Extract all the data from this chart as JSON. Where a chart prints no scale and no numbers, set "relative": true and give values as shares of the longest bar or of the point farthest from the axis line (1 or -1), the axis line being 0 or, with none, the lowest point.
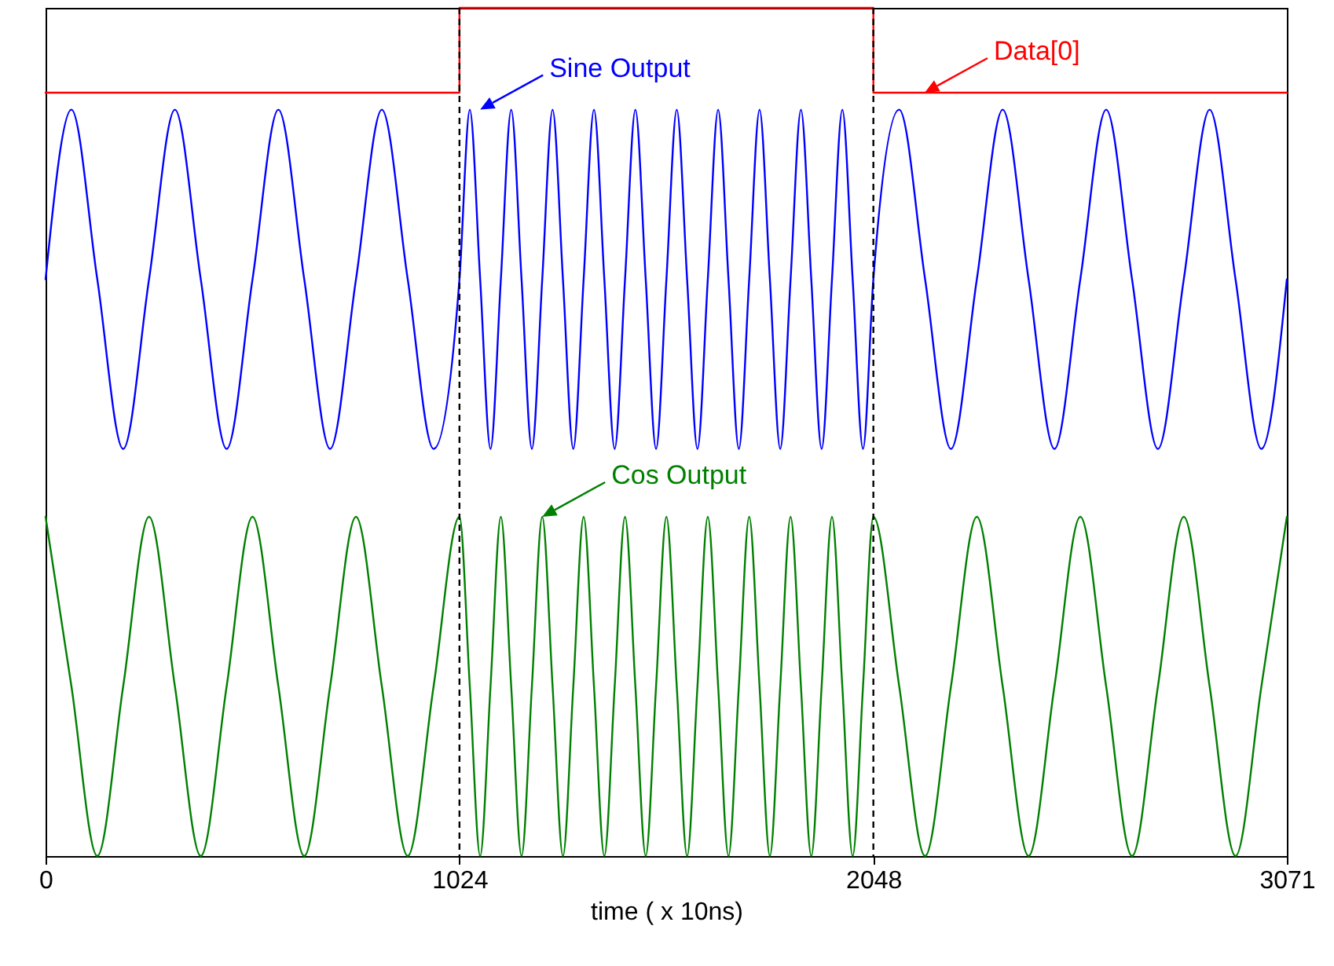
{
  "chart_data": {
    "type": "line",
    "relative": true,
    "xlabel": "time ( x 10ns)",
    "xlim": [
      0,
      3071
    ],
    "xticks": [
      0,
      1024,
      2048,
      3071
    ],
    "grid": false,
    "line_style": "solid",
    "marker": "none",
    "x": [
      0,
      64,
      128,
      192,
      256,
      320,
      384,
      448,
      512,
      576,
      640,
      704,
      768,
      832,
      896,
      960,
      1024,
      1049.6,
      1075.2,
      1100.8,
      1126.4,
      1152,
      1177.6,
      1203.2,
      1228.8,
      1254.4,
      1280,
      1305.6,
      1331.2,
      1356.8,
      1382.4,
      1408,
      1433.6,
      1459.2,
      1484.8,
      1510.4,
      1536,
      1561.6,
      1587.2,
      1612.8,
      1638.4,
      1664,
      1689.6,
      1715.2,
      1740.8,
      1766.4,
      1792,
      1817.6,
      1843.2,
      1868.8,
      1894.4,
      1920,
      1945.6,
      1971.2,
      1996.8,
      2022.4,
      2048,
      2112,
      2176,
      2240,
      2304,
      2368,
      2432,
      2496,
      2560,
      2624,
      2688,
      2752,
      2816,
      2880,
      2944,
      3008,
      3071
    ],
    "series": [
      {
        "color": "#0000ff",
        "values": [
          0.68,
          0.88,
          0.68,
          0.48,
          0.68,
          0.88,
          0.68,
          0.48,
          0.68,
          0.88,
          0.68,
          0.48,
          0.68,
          0.88,
          0.68,
          0.48,
          0.68,
          0.88,
          0.68,
          0.48,
          0.68,
          0.88,
          0.68,
          0.48,
          0.68,
          0.88,
          0.68,
          0.48,
          0.68,
          0.88,
          0.68,
          0.48,
          0.68,
          0.88,
          0.68,
          0.48,
          0.68,
          0.88,
          0.68,
          0.48,
          0.68,
          0.88,
          0.68,
          0.48,
          0.68,
          0.88,
          0.68,
          0.48,
          0.68,
          0.88,
          0.68,
          0.48,
          0.68,
          0.88,
          0.68,
          0.48,
          0.68,
          0.88,
          0.68,
          0.48,
          0.68,
          0.88,
          0.68,
          0.48,
          0.68,
          0.88,
          0.68,
          0.48,
          0.68,
          0.88,
          0.68,
          0.48,
          0.68
        ]
      },
      {
        "color": "#008000",
        "values": [
          0.4,
          0.2,
          0,
          0.2,
          0.4,
          0.2,
          0,
          0.2,
          0.4,
          0.2,
          0,
          0.2,
          0.4,
          0.2,
          0,
          0.2,
          0.4,
          0.2,
          0,
          0.2,
          0.4,
          0.2,
          0,
          0.2,
          0.4,
          0.2,
          0,
          0.2,
          0.4,
          0.2,
          0,
          0.2,
          0.4,
          0.2,
          0,
          0.2,
          0.4,
          0.2,
          0,
          0.2,
          0.4,
          0.2,
          0,
          0.2,
          0.4,
          0.2,
          0,
          0.2,
          0.4,
          0.2,
          0,
          0.2,
          0.4,
          0.2,
          0,
          0.2,
          0.4,
          0.2,
          0,
          0.2,
          0.4,
          0.2,
          0,
          0.2,
          0.4,
          0.2,
          0,
          0.2,
          0.4,
          0.2,
          0,
          0.2,
          0.4
        ]
      },
      {
        "type": "step",
        "color": "#ff0000",
        "x": [
          0,
          1024,
          2048,
          3071
        ],
        "values": [
          0.9,
          1,
          0.9,
          0.9
        ]
      }
    ],
    "ref_lines": [
      {
        "axis": "x",
        "value": 1024,
        "color": "#000000",
        "line_style": "dashed"
      },
      {
        "axis": "x",
        "value": 2048,
        "color": "#000000",
        "line_style": "dashed"
      }
    ],
    "annotations": [
      {
        "text": "Sine Output",
        "x": 1075.2,
        "y": 0.88
      },
      {
        "text": "Cos Output",
        "x": 1228.8,
        "y": 0.4
      },
      {
        "text": "Data[0]",
        "x": 2175,
        "y": 0.9
      }
    ]
  }
}
